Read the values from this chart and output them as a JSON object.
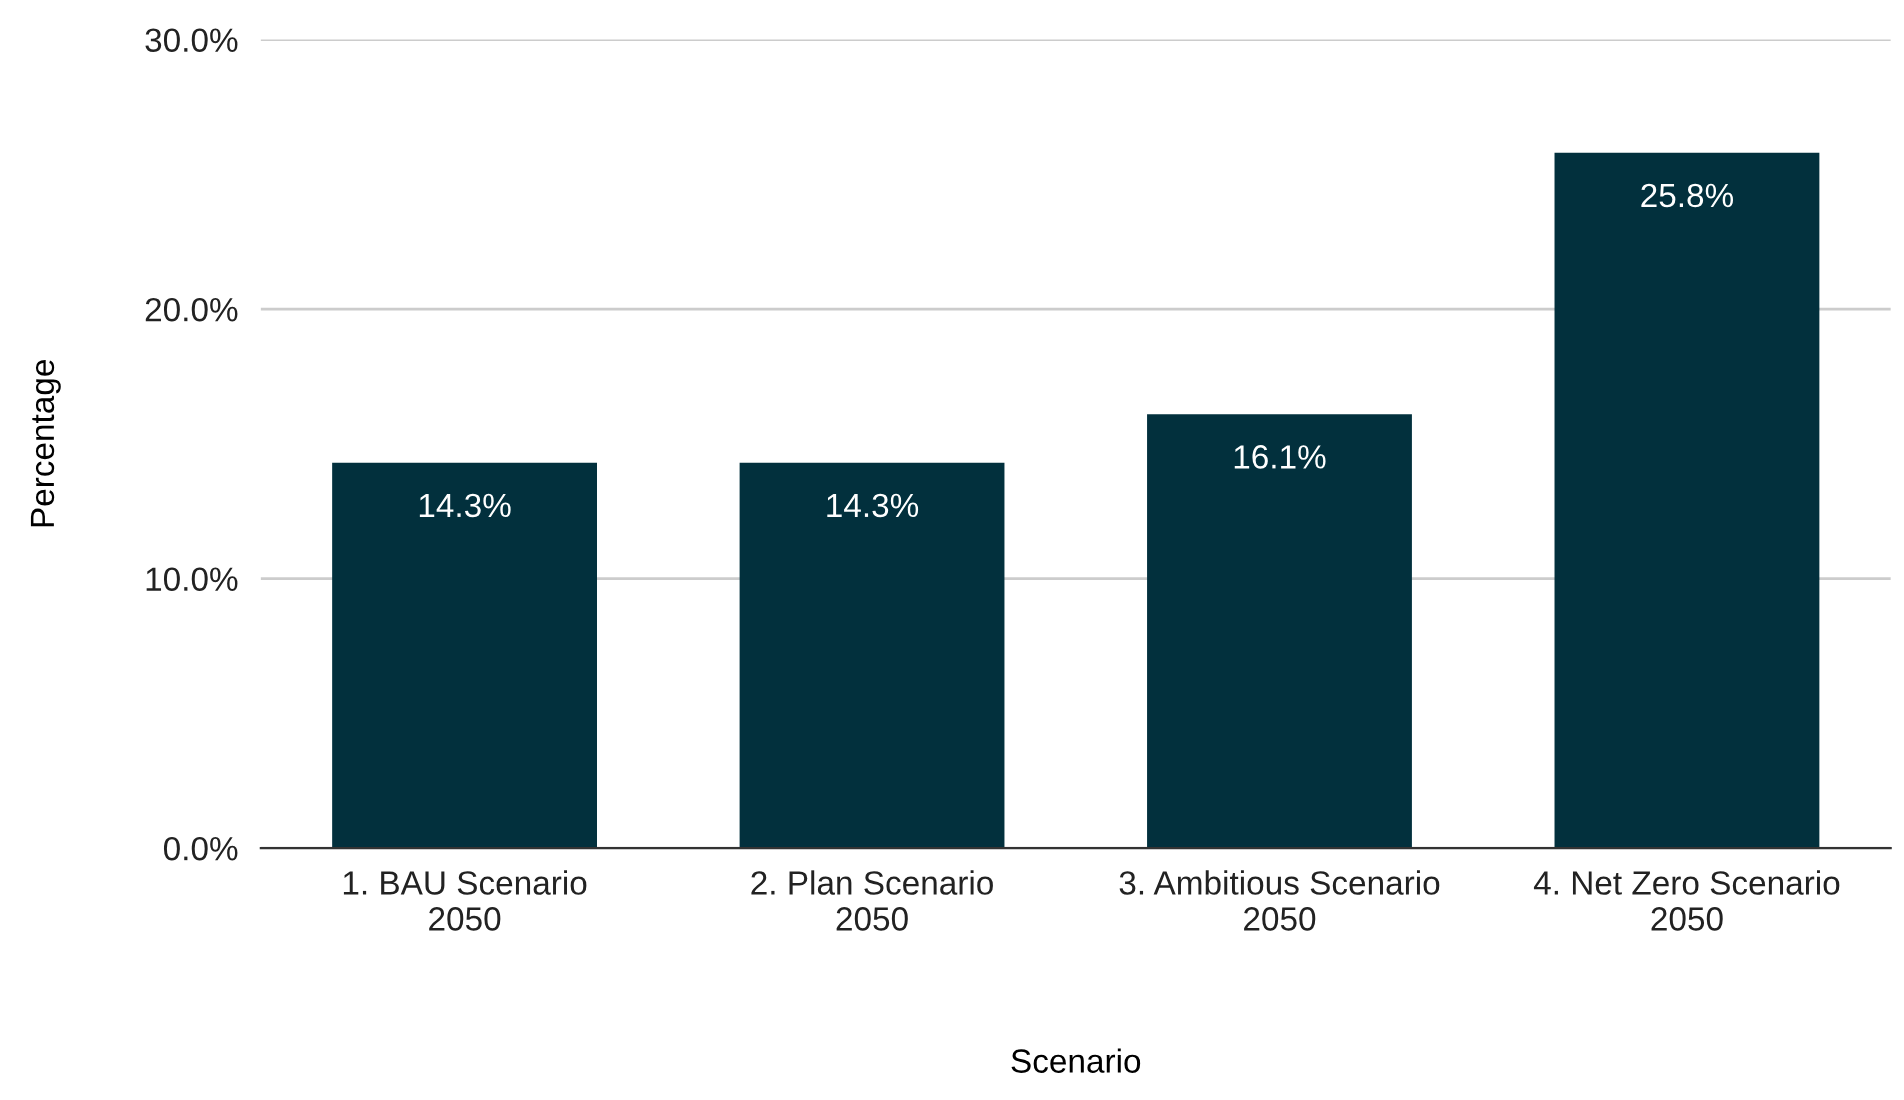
{
  "chart_data": {
    "type": "bar",
    "xlabel": "Scenario",
    "ylabel": "Percentage",
    "categories": [
      "1. BAU Scenario\n2050",
      "2. Plan Scenario\n2050",
      "3. Ambitious Scenario\n2050",
      "4. Net Zero Scenario\n2050"
    ],
    "values": [
      14.3,
      14.3,
      16.1,
      25.8
    ],
    "value_labels": [
      "14.3%",
      "14.3%",
      "16.1%",
      "25.8%"
    ],
    "color": "#02303d",
    "ylim": [
      0,
      30
    ],
    "yticks": [
      {
        "value": 0,
        "label": "0.0%"
      },
      {
        "value": 10,
        "label": "10.0%"
      },
      {
        "value": 20,
        "label": "20.0%"
      },
      {
        "value": 30,
        "label": "30.0%"
      }
    ],
    "grid": "y"
  }
}
